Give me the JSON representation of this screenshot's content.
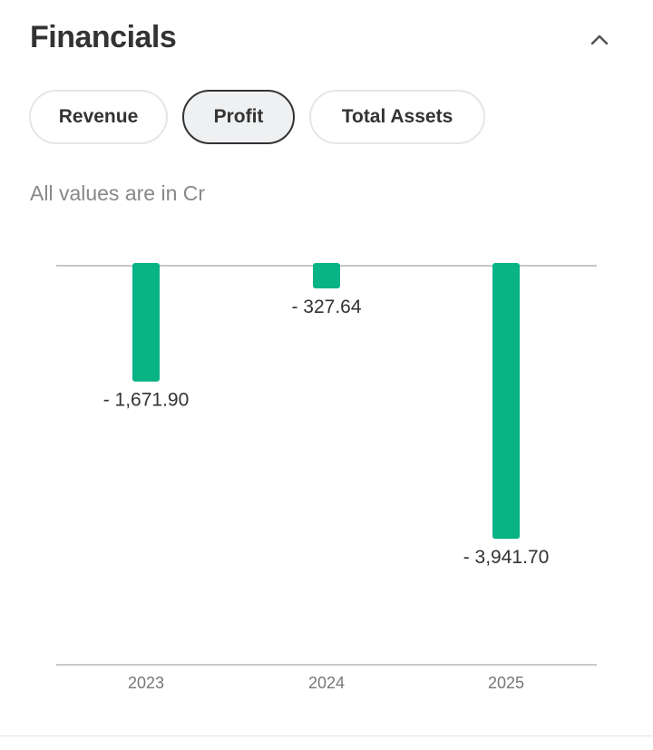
{
  "header": {
    "title": "Financials",
    "collapse_icon": "chevron-up-icon"
  },
  "tabs": [
    {
      "label": "Revenue",
      "active": false
    },
    {
      "label": "Profit",
      "active": true
    },
    {
      "label": "Total Assets",
      "active": false
    }
  ],
  "note": "All values are in Cr",
  "chart_data": {
    "type": "bar",
    "title": "Profit",
    "xlabel": "",
    "ylabel": "",
    "categories": [
      "2023",
      "2024",
      "2025"
    ],
    "values": [
      -1671.9,
      -327.64,
      -3941.7
    ],
    "value_labels": [
      "- 1,671.90",
      "- 327.64",
      "- 3,941.70"
    ],
    "ylim": [
      -5760,
      0
    ],
    "grid": false,
    "bar_color": "#08b386"
  }
}
